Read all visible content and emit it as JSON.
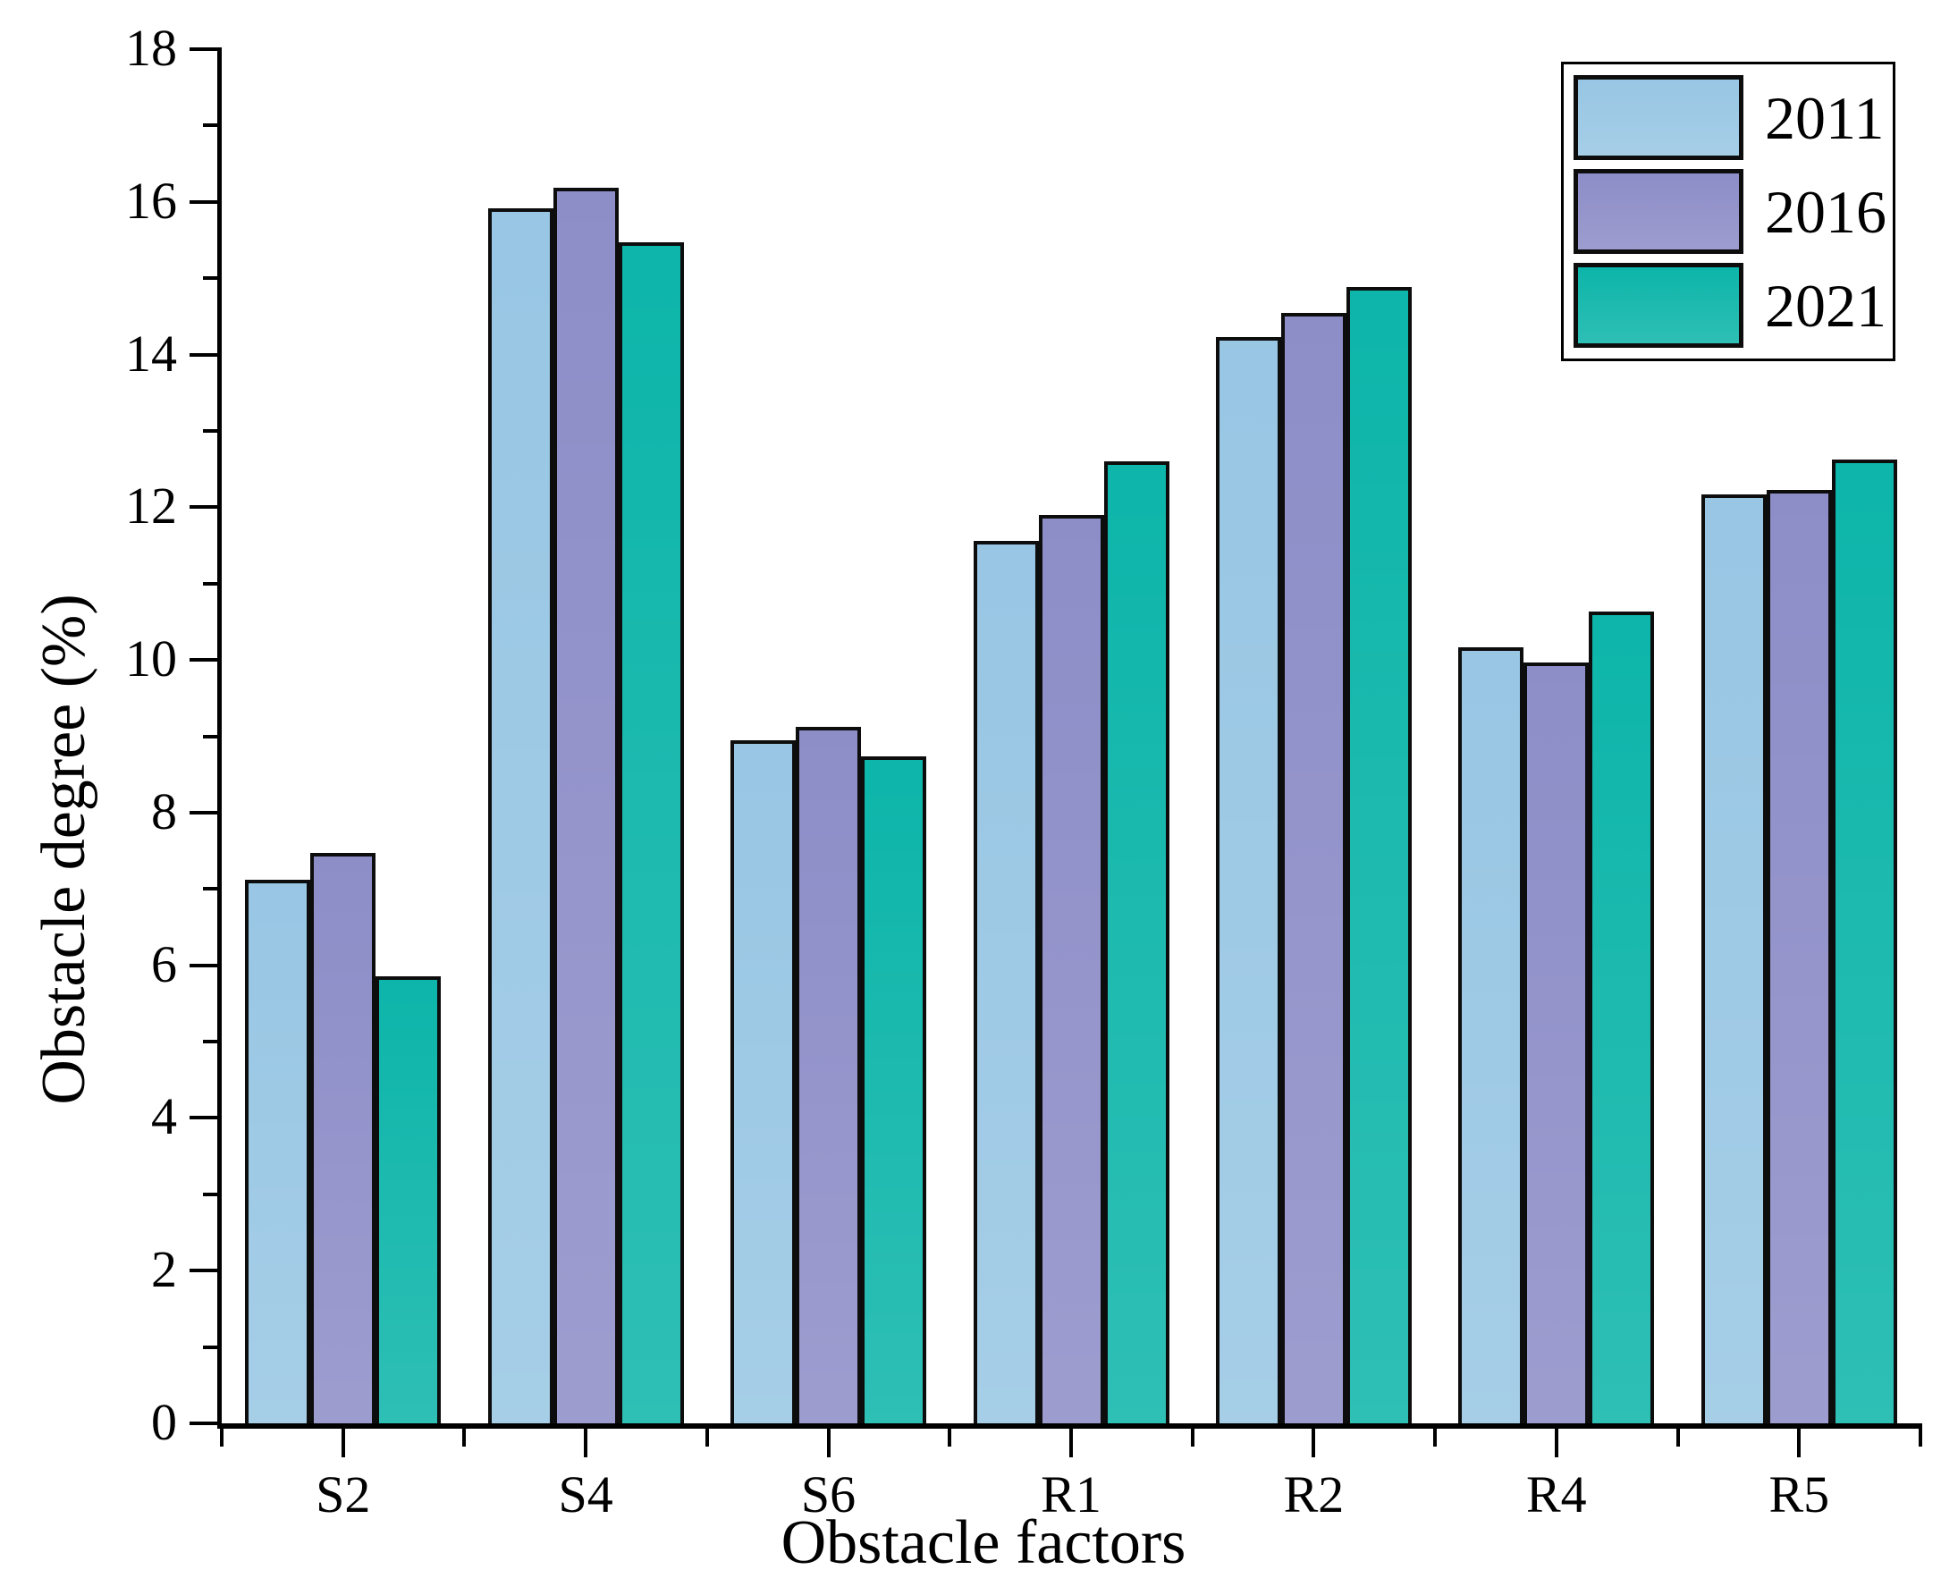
{
  "chart_data": {
    "type": "bar",
    "title": "",
    "xlabel": "Obstacle factors",
    "ylabel": "Obstacle degree (%)",
    "categories": [
      "S2",
      "S4",
      "S6",
      "R1",
      "R2",
      "R4",
      "R5"
    ],
    "series": [
      {
        "name": "2011",
        "color": "#92c3e2",
        "values": [
          7.12,
          15.92,
          8.95,
          11.56,
          14.23,
          10.16,
          12.17
        ]
      },
      {
        "name": "2016",
        "color": "#8787c5",
        "values": [
          7.47,
          16.19,
          9.12,
          11.9,
          14.54,
          9.97,
          12.23
        ]
      },
      {
        "name": "2021",
        "color": "#00b1a5",
        "values": [
          5.86,
          15.47,
          8.74,
          12.6,
          14.88,
          10.63,
          12.63
        ]
      }
    ],
    "ylim": [
      0,
      18
    ],
    "y_major_step": 2,
    "y_minor_step": 1,
    "grid": false,
    "legend_position": "top-right",
    "bar_border_color": "#0d0d0d",
    "axis_color": "#000000"
  }
}
